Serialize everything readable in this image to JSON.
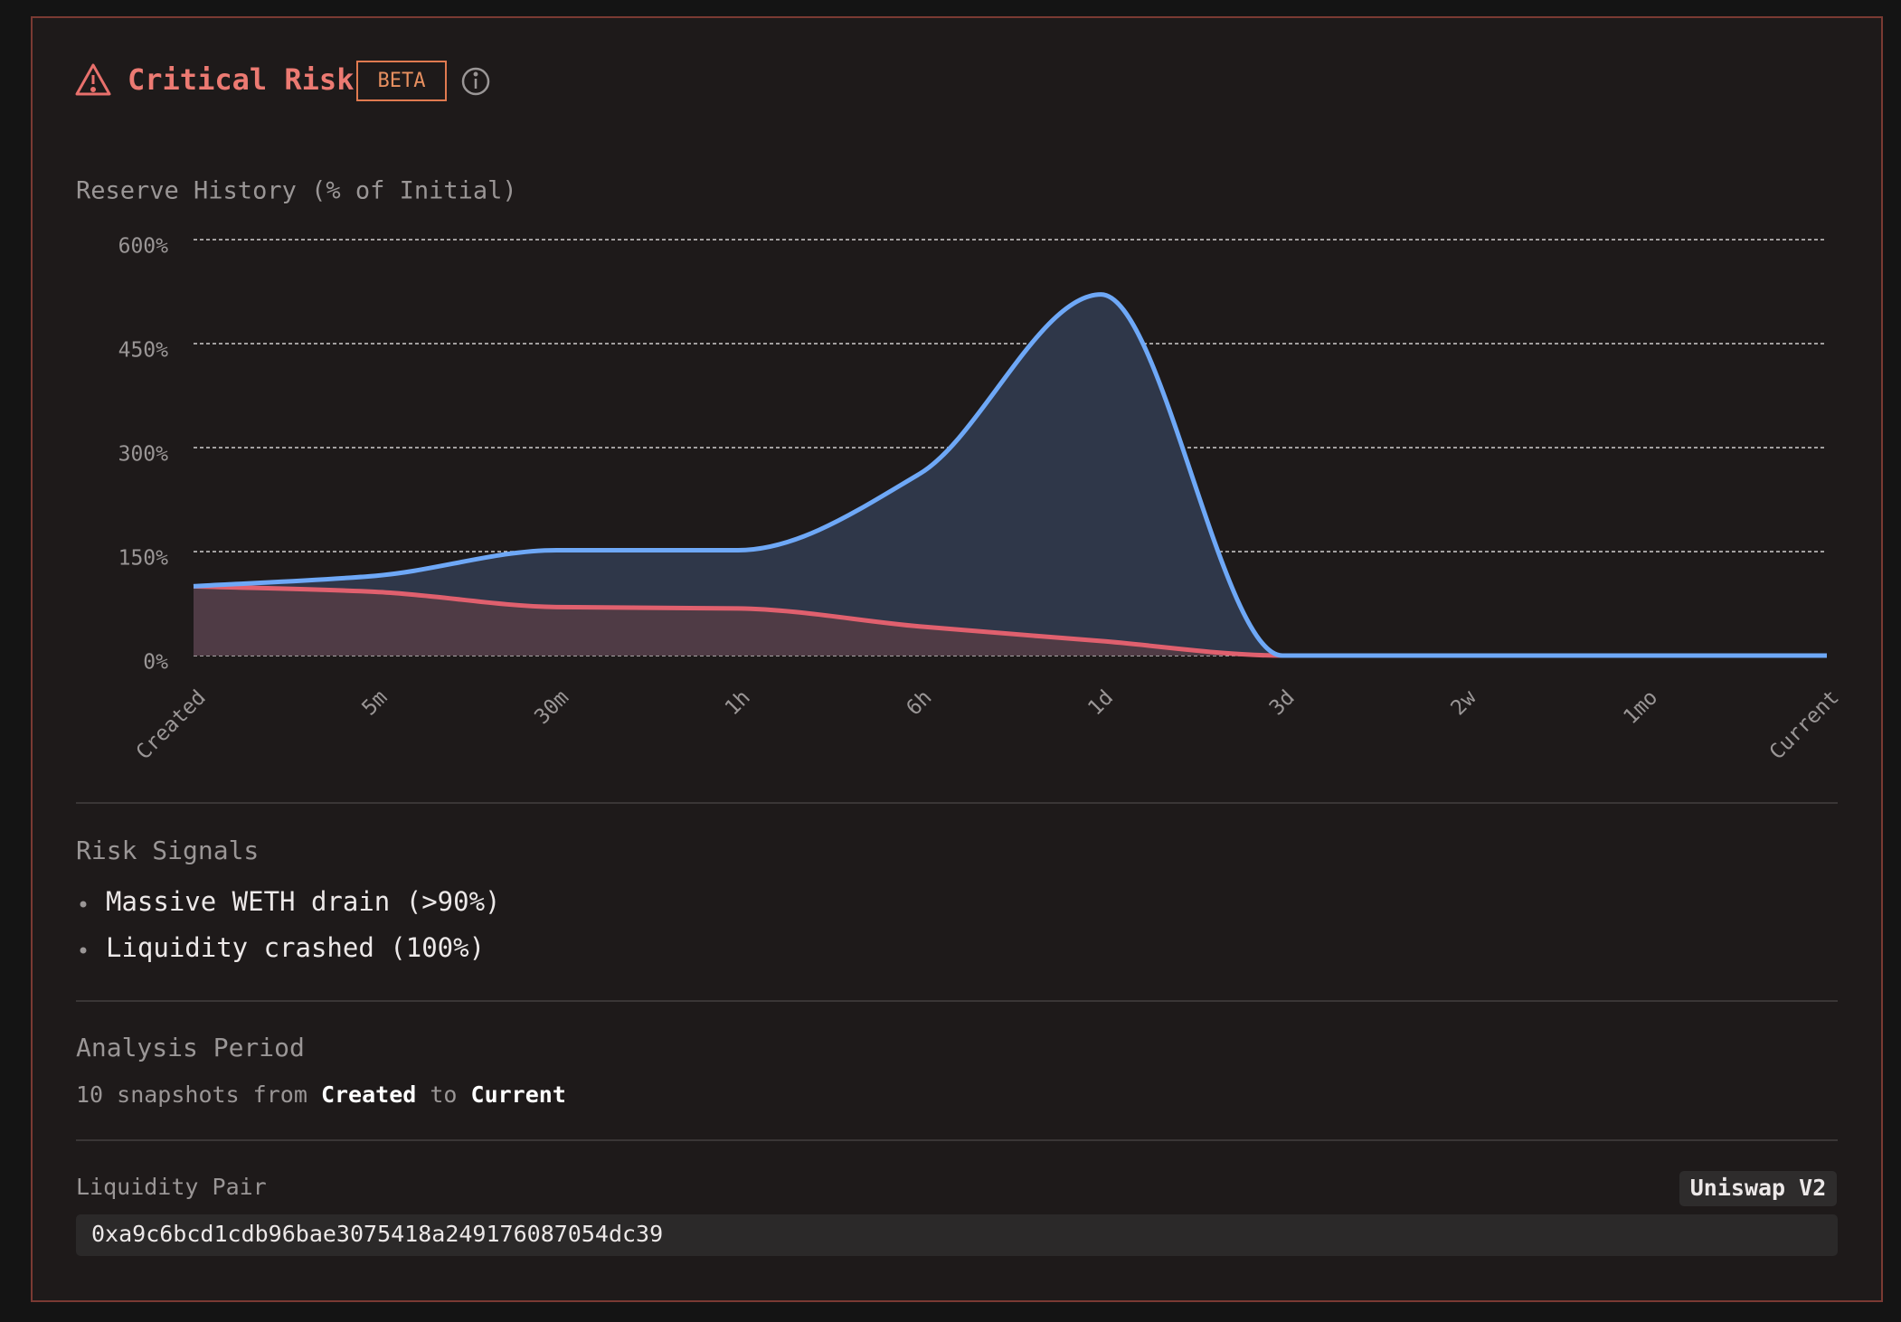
{
  "header": {
    "title": "Critical Risk",
    "badge": "BETA"
  },
  "chart_data": {
    "type": "area",
    "title": "Reserve History (% of Initial)",
    "categories": [
      "Created",
      "5m",
      "30m",
      "1h",
      "6h",
      "1d",
      "3d",
      "2w",
      "1mo",
      "Current"
    ],
    "series": [
      {
        "color": "#6ea8f7",
        "values": [
          100,
          115,
          152,
          152,
          262,
          521,
          0,
          0,
          0,
          0
        ]
      },
      {
        "color": "#e0606e",
        "values": [
          100,
          92,
          70,
          68,
          42,
          21,
          0,
          0,
          0,
          0
        ]
      }
    ],
    "ylim": [
      0,
      600
    ],
    "yticks": [
      {
        "value": 0,
        "label": "0%"
      },
      {
        "value": 150,
        "label": "150%"
      },
      {
        "value": 300,
        "label": "300%"
      },
      {
        "value": 450,
        "label": "450%"
      },
      {
        "value": 600,
        "label": "600%"
      }
    ],
    "grid": true
  },
  "risk_signals": {
    "title": "Risk Signals",
    "items": [
      "Massive WETH drain (>90%)",
      "Liquidity crashed (100%)"
    ]
  },
  "analysis": {
    "title": "Analysis Period",
    "lead": "10 snapshots from",
    "start": "Created",
    "middle": "to",
    "end": "Current"
  },
  "pair": {
    "title": "Liquidity Pair",
    "protocol": "Uniswap V2",
    "address": "0xa9c6bcd1cdb96bae3075418a249176087054dc39"
  }
}
